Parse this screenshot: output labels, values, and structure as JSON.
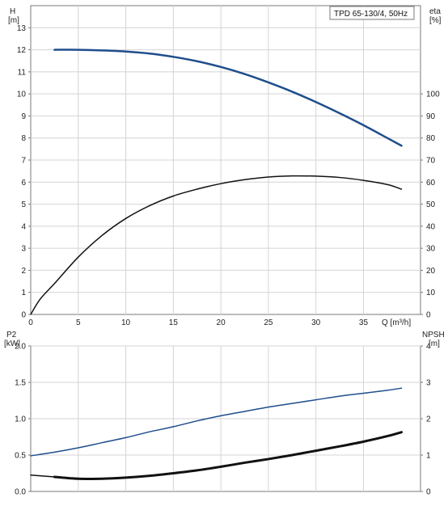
{
  "chart_data": [
    {
      "type": "line",
      "title": "TPD 65-130/4, 50Hz",
      "xlabel": "Q [m³/h]",
      "xlim": [
        0,
        41
      ],
      "x_ticks": [
        0,
        5,
        10,
        15,
        20,
        25,
        30,
        35
      ],
      "left_axis": {
        "label_line1": "H",
        "label_line2": "[m]",
        "lim": [
          0,
          14
        ],
        "ticks": [
          0,
          1,
          2,
          3,
          4,
          5,
          6,
          7,
          8,
          9,
          10,
          11,
          12,
          13
        ]
      },
      "right_axis": {
        "label_line1": "eta",
        "label_line2": "[%]",
        "lim": [
          0,
          140
        ],
        "ticks": [
          0,
          10,
          20,
          30,
          40,
          50,
          60,
          70,
          80,
          90,
          100
        ]
      },
      "grid": true,
      "series": [
        {
          "axis": "left",
          "color": "#1f4e8c",
          "stroke_width": 2.5,
          "x": [
            2.5,
            5,
            7.5,
            10,
            12.5,
            15,
            17.5,
            20,
            22.5,
            25,
            27.5,
            30,
            32.5,
            35,
            37.5,
            39
          ],
          "y": [
            12.0,
            12.0,
            11.97,
            11.92,
            11.83,
            11.68,
            11.48,
            11.22,
            10.9,
            10.52,
            10.1,
            9.63,
            9.12,
            8.58,
            8.0,
            7.65
          ]
        },
        {
          "axis": "right",
          "color": "#111111",
          "stroke_width": 1.5,
          "x": [
            0,
            1,
            2.5,
            5,
            7.5,
            10,
            12.5,
            15,
            17.5,
            20,
            22.5,
            25,
            27.5,
            30,
            32.5,
            35,
            37.5,
            39
          ],
          "y": [
            0,
            7,
            14,
            26,
            35.8,
            43.5,
            49.3,
            53.7,
            56.8,
            59.3,
            61.1,
            62.3,
            62.8,
            62.7,
            62.1,
            60.8,
            58.9,
            56.8
          ]
        }
      ]
    },
    {
      "type": "line",
      "xlim": [
        0,
        41
      ],
      "x_ticks": [
        0,
        5,
        10,
        15,
        20,
        25,
        30,
        35
      ],
      "left_axis": {
        "label_line1": "P2",
        "label_line2": "[kW]",
        "lim": [
          0,
          2.0
        ],
        "ticks": [
          "0.0",
          "0.5",
          "1.0",
          "1.5",
          "2.0"
        ]
      },
      "right_axis": {
        "label_line1": "NPSH",
        "label_line2": "[m]",
        "lim": [
          0,
          4
        ],
        "ticks": [
          0,
          1,
          2,
          3,
          4
        ]
      },
      "grid": true,
      "series": [
        {
          "axis": "left",
          "color": "#1f4e8c",
          "stroke_width": 1.5,
          "x": [
            0,
            2.5,
            5,
            7.5,
            10,
            12.5,
            15,
            17.5,
            20,
            22.5,
            25,
            27.5,
            30,
            32.5,
            35,
            37.5,
            39
          ],
          "y": [
            0.49,
            0.54,
            0.6,
            0.67,
            0.74,
            0.82,
            0.89,
            0.97,
            1.04,
            1.1,
            1.16,
            1.21,
            1.26,
            1.31,
            1.35,
            1.39,
            1.42
          ]
        },
        {
          "axis": "right",
          "color": "#111111",
          "stroke_width": 1.5,
          "x": [
            0,
            2.5
          ],
          "y": [
            0.45,
            0.4
          ]
        },
        {
          "axis": "right",
          "color": "#111111",
          "stroke_width": 3,
          "x": [
            2.5,
            5,
            7.5,
            10,
            12.5,
            15,
            17.5,
            20,
            22.5,
            25,
            27.5,
            30,
            32.5,
            35,
            37.5,
            39
          ],
          "y": [
            0.4,
            0.35,
            0.35,
            0.38,
            0.43,
            0.5,
            0.58,
            0.68,
            0.79,
            0.89,
            1.0,
            1.12,
            1.24,
            1.37,
            1.52,
            1.63
          ]
        }
      ]
    }
  ]
}
